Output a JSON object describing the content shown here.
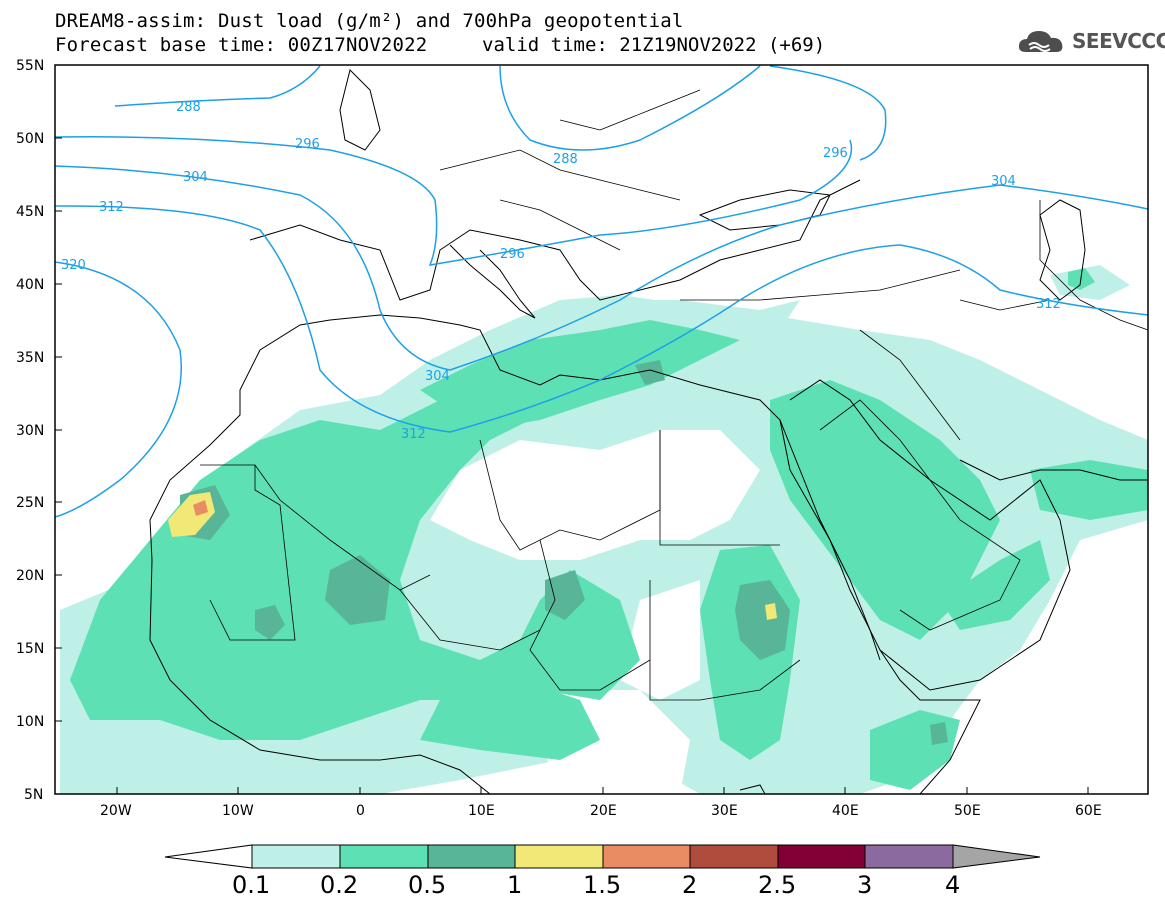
{
  "title": {
    "line1": "DREAM8-assim: Dust load (g/m²) and 700hPa geopotential",
    "line2": "Forecast base time: 00Z17NOV2022",
    "valid": "valid time: 21Z19NOV2022 (+69)"
  },
  "logo": {
    "text": "SEEVCCC",
    "icon": "cloud-logo-icon"
  },
  "axes": {
    "lat_labels": [
      "55N",
      "50N",
      "45N",
      "40N",
      "35N",
      "30N",
      "25N",
      "20N",
      "15N",
      "10N",
      "5N"
    ],
    "lon_labels": [
      "20W",
      "10W",
      "0",
      "10E",
      "20E",
      "30E",
      "40E",
      "50E",
      "60E"
    ],
    "lon_range": [
      -25,
      65
    ],
    "lat_range": [
      5,
      55
    ]
  },
  "contours": {
    "color": "#1ea0e6",
    "labels": [
      "288",
      "296",
      "304",
      "312",
      "320",
      "288",
      "296",
      "296",
      "304",
      "304",
      "312",
      "312",
      "296"
    ]
  },
  "colorbar": {
    "levels": [
      "0.1",
      "0.2",
      "0.5",
      "1",
      "1.5",
      "2",
      "2.5",
      "3",
      "4"
    ],
    "colors": [
      "#bff0e8",
      "#5de0b3",
      "#58b597",
      "#f1e878",
      "#e98c64",
      "#b04c3e",
      "#820033",
      "#8b6aa0"
    ],
    "under_color": "#ffffff",
    "over_color": "#a5a5a5"
  },
  "fill_colors": {
    "light": "#bff0e8",
    "mid": "#5de0b3",
    "dark": "#58b597",
    "yellow": "#f1e878",
    "orange": "#e98c64"
  }
}
